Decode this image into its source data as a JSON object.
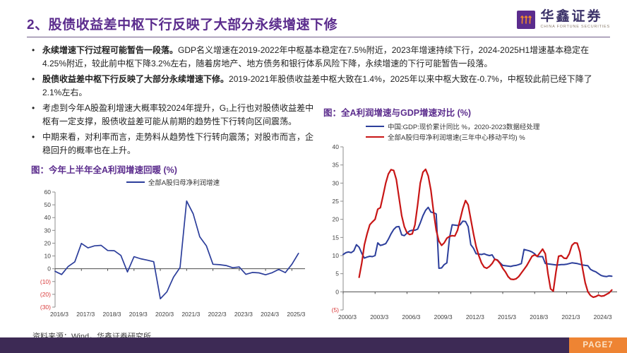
{
  "header": {
    "title": "2、股债收益差中枢下行反映了大部分永续增速下修",
    "logo": {
      "name": "华鑫证券",
      "subtitle": "CHINA FORTUNE SECURITIES"
    }
  },
  "bullets": [
    {
      "lead": "永续增速下行过程可能暂告一段落。",
      "text": "GDP名义增速在2019-2022年中枢基本稳定在7.5%附近，2023年增速持续下行，2024-2025H1增速基本稳定在4.25%附近，较此前中枢下降3.2%左右，随着房地产、地方债务和银行体系风险下降，永续增速的下行可能暂告一段落。"
    },
    {
      "lead": "股债收益差中枢下行反映了大部分永续增速下修。",
      "text": "2019-2021年股债收益差中枢大致在1.4%，2025年以来中枢大致在-0.7%，中枢较此前已经下降了2.1%左右。"
    },
    {
      "lead": "",
      "text": "考虑到今年A股盈利增速大概率较2024年提升，G₁上行也对股债收益差中枢有一定支撑，股债收益差可能从前期的趋势性下行转向区间震荡。"
    },
    {
      "lead": "",
      "text": "中期来看，对利率而言，走势料从趋势性下行转向震荡；对股市而言，企稳回升的概率也在上升。"
    }
  ],
  "footer": {
    "source": "资料来源：Wind，华鑫证券研究所",
    "page": "PAGE7"
  },
  "colors": {
    "accent_purple": "#5B2C8D",
    "footer_purple": "#3D2A55",
    "footer_orange": "#EE8433",
    "line_blue": "#2C3E9B",
    "line_red": "#C81616",
    "negative_tick_red": "#D93A3A",
    "axis_gray": "#8C8C8C",
    "zero_line": "#4D4D4D",
    "tick_label": "#404040"
  },
  "chart_data": [
    {
      "type": "line",
      "title": "图：今年上半年全A利润增速回暖 (%)",
      "x_unit": "quarter-index from 2016/3",
      "legend_position": "top-center",
      "layout": {
        "xlim": [
          0,
          38
        ],
        "ylim": [
          -30,
          60
        ],
        "yticks": [
          60,
          50,
          40,
          30,
          20,
          10,
          0,
          -10,
          -20,
          -30
        ],
        "xticks": [
          {
            "x": 0,
            "label": "2016/3"
          },
          {
            "x": 4,
            "label": "2017/3"
          },
          {
            "x": 8,
            "label": "2018/3"
          },
          {
            "x": 12,
            "label": "2019/3"
          },
          {
            "x": 16,
            "label": "2020/3"
          },
          {
            "x": 20,
            "label": "2021/3"
          },
          {
            "x": 24,
            "label": "2022/3"
          },
          {
            "x": 28,
            "label": "2023/3"
          },
          {
            "x": 32,
            "label": "2024/3"
          },
          {
            "x": 36,
            "label": "2025/3"
          }
        ],
        "margins": {
          "l": 34,
          "r": 10,
          "t": 7,
          "b": 16
        },
        "grid": false
      },
      "series": [
        {
          "name": "全部A股归母净利润增速",
          "color": "#2C3E9B",
          "width": 1.7,
          "start": 0,
          "values": [
            -2.0,
            -4.5,
            1.8,
            5.4,
            19.8,
            16.3,
            17.9,
            18.3,
            14.3,
            14.1,
            10.4,
            -2.5,
            9.4,
            7.8,
            6.8,
            5.5,
            -23.5,
            -18.0,
            -6.6,
            1.0,
            53.0,
            43.0,
            25.0,
            17.9,
            3.5,
            3.2,
            2.5,
            0.8,
            1.4,
            -4.4,
            -2.9,
            -3.2,
            -4.7,
            -3.1,
            -0.5,
            -3.0,
            3.5,
            12.0
          ]
        }
      ]
    },
    {
      "type": "line",
      "title": "图：全A利润增速与GDP增速对比 (%)",
      "x_unit": "quarter-index from 2000/3",
      "legend_position": "top-left",
      "layout": {
        "xlim": [
          0,
          103
        ],
        "ylim": [
          -5,
          40
        ],
        "yticks": [
          40,
          35,
          30,
          25,
          20,
          15,
          10,
          5,
          0,
          -5
        ],
        "xticks": [
          {
            "x": 0,
            "label": "2000/3"
          },
          {
            "x": 12,
            "label": "2003/3"
          },
          {
            "x": 24,
            "label": "2006/3"
          },
          {
            "x": 36,
            "label": "2009/3"
          },
          {
            "x": 48,
            "label": "2012/3"
          },
          {
            "x": 60,
            "label": "2015/3"
          },
          {
            "x": 72,
            "label": "2018/3"
          },
          {
            "x": 84,
            "label": "2021/3"
          },
          {
            "x": 96,
            "label": "2024/3"
          }
        ],
        "margins": {
          "l": 28,
          "r": 8,
          "t": 7,
          "b": 16
        },
        "grid": false
      },
      "series": [
        {
          "name": "中国:GDP:现价累计同比 %，2020-2023数据经处理",
          "color": "#2C3E9B",
          "width": 2.0,
          "start": 0,
          "values": [
            10.3,
            10.8,
            11.0,
            10.8,
            11.3,
            13.0,
            12.3,
            10.6,
            9.3,
            9.6,
            9.8,
            9.7,
            10.0,
            13.5,
            12.8,
            13.0,
            13.3,
            14.5,
            16.0,
            17.2,
            17.9,
            18.0,
            15.7,
            15.5,
            16.2,
            16.8,
            17.0,
            17.0,
            17.3,
            19.0,
            21.0,
            22.5,
            23.3,
            22.0,
            21.8,
            21.5,
            6.5,
            6.6,
            7.5,
            8.0,
            15.0,
            18.5,
            18.4,
            18.3,
            18.5,
            19.5,
            19.4,
            18.0,
            13.0,
            12.0,
            10.5,
            10.4,
            10.3,
            10.5,
            10.2,
            10.0,
            10.2,
            9.0,
            8.8,
            8.0,
            7.3,
            7.2,
            7.1,
            7.0,
            7.2,
            7.3,
            7.5,
            7.8,
            11.7,
            11.5,
            11.3,
            11.0,
            10.5,
            9.7,
            9.7,
            9.7,
            7.8,
            7.7,
            7.6,
            7.5,
            7.4,
            7.4,
            7.5,
            7.5,
            7.6,
            7.8,
            8.0,
            7.9,
            7.8,
            7.6,
            7.4,
            7.3,
            7.2,
            6.2,
            5.8,
            5.5,
            5.0,
            4.5,
            4.3,
            4.2,
            4.4,
            4.3
          ]
        },
        {
          "name": "全部A股归母净利润增速(三年中心移动平均) %",
          "color": "#C81616",
          "width": 2.2,
          "start": 6,
          "values": [
            4.0,
            8.0,
            13.0,
            16.0,
            18.5,
            19.3,
            20.0,
            22.8,
            23.2,
            26.5,
            30.0,
            32.5,
            33.7,
            33.5,
            31.0,
            26.0,
            21.0,
            18.0,
            16.3,
            15.8,
            16.0,
            18.5,
            24.0,
            30.0,
            33.0,
            33.8,
            32.0,
            28.0,
            22.0,
            17.0,
            14.0,
            12.8,
            13.5,
            14.8,
            15.3,
            15.5,
            15.4,
            17.0,
            20.0,
            23.0,
            25.2,
            24.0,
            20.0,
            16.0,
            12.5,
            10.0,
            8.0,
            6.8,
            6.5,
            7.0,
            7.8,
            9.0,
            8.7,
            7.8,
            6.5,
            5.5,
            4.2,
            3.5,
            3.4,
            3.6,
            4.2,
            5.2,
            6.2,
            7.2,
            8.5,
            9.8,
            10.2,
            9.8,
            10.8,
            11.8,
            10.5,
            5.0,
            0.8,
            0.2,
            5.5,
            9.8,
            10.0,
            9.3,
            9.2,
            10.5,
            12.8,
            13.5,
            13.4,
            11.0,
            6.5,
            2.5,
            0.0,
            -1.0,
            -1.5,
            -1.3,
            -0.9,
            -1.2,
            -1.1,
            -0.7,
            -0.3,
            0.5
          ]
        }
      ]
    }
  ]
}
